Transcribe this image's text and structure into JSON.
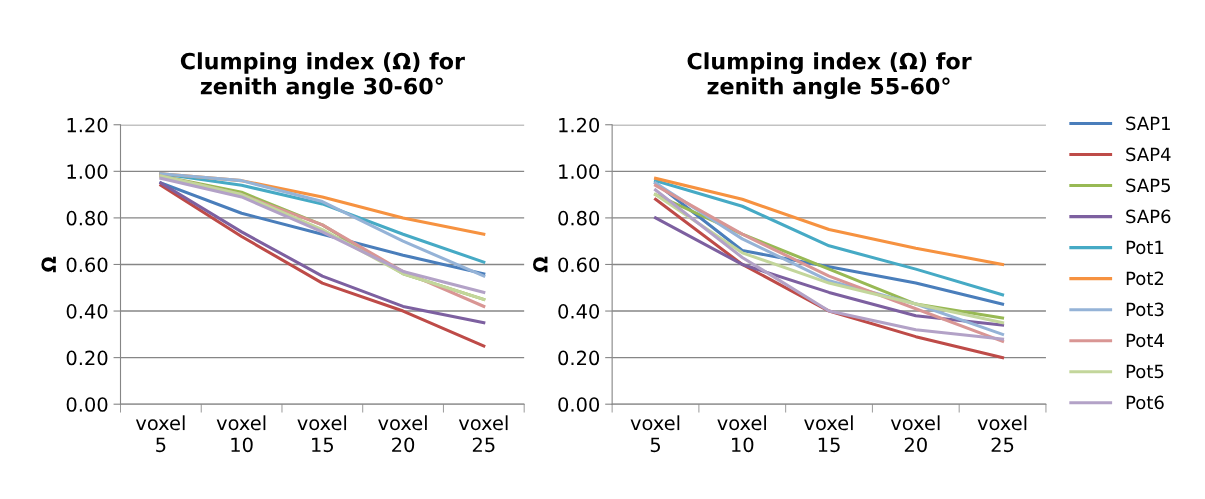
{
  "chart_data": [
    {
      "type": "line",
      "title": "Clumping index (Ω) for\nzenith angle 30-60°",
      "ylabel": "Ω",
      "categories": [
        "voxel 5",
        "voxel 10",
        "voxel 15",
        "voxel 20",
        "voxel 25"
      ],
      "ylim": [
        0,
        1.2
      ],
      "yticks": [
        {
          "value": 0,
          "label": "0.00"
        },
        {
          "value": 0.2,
          "label": "0.20"
        },
        {
          "value": 0.4,
          "label": "0.40"
        },
        {
          "value": 0.6,
          "label": "0.60"
        },
        {
          "value": 0.8,
          "label": "0.80"
        },
        {
          "value": 1.0,
          "label": "1.00"
        },
        {
          "value": 1.2,
          "label": "1.20"
        }
      ],
      "grid": "y",
      "series": [
        {
          "color": "#4a7ebb",
          "values": [
            0.95,
            0.82,
            0.73,
            0.64,
            0.56
          ]
        },
        {
          "color": "#be4b48",
          "values": [
            0.94,
            0.72,
            0.52,
            0.4,
            0.25
          ]
        },
        {
          "color": "#98b954",
          "values": [
            0.98,
            0.91,
            0.77,
            0.56,
            0.45
          ]
        },
        {
          "color": "#7d60a0",
          "values": [
            0.95,
            0.74,
            0.55,
            0.42,
            0.35
          ]
        },
        {
          "color": "#46aac5",
          "values": [
            0.99,
            0.94,
            0.86,
            0.73,
            0.61
          ]
        },
        {
          "color": "#f69240",
          "values": [
            0.99,
            0.96,
            0.89,
            0.8,
            0.73
          ]
        },
        {
          "color": "#95b3d7",
          "values": [
            0.99,
            0.96,
            0.87,
            0.7,
            0.55
          ]
        },
        {
          "color": "#d99694",
          "values": [
            0.98,
            0.9,
            0.77,
            0.57,
            0.42
          ]
        },
        {
          "color": "#c3d69b",
          "values": [
            0.98,
            0.9,
            0.75,
            0.56,
            0.45
          ]
        },
        {
          "color": "#b3a2c7",
          "values": [
            0.97,
            0.89,
            0.74,
            0.57,
            0.48
          ]
        }
      ]
    },
    {
      "type": "line",
      "title": "Clumping index (Ω) for\nzenith angle 55-60°",
      "ylabel": "Ω",
      "categories": [
        "voxel 5",
        "voxel 10",
        "voxel 15",
        "voxel 20",
        "voxel 25"
      ],
      "ylim": [
        0,
        1.2
      ],
      "yticks": [
        {
          "value": 0,
          "label": "0.00"
        },
        {
          "value": 0.2,
          "label": "0.20"
        },
        {
          "value": 0.4,
          "label": "0.40"
        },
        {
          "value": 0.6,
          "label": "0.60"
        },
        {
          "value": 0.8,
          "label": "0.80"
        },
        {
          "value": 1.0,
          "label": "1.00"
        },
        {
          "value": 1.2,
          "label": "1.20"
        }
      ],
      "grid": "y",
      "legend": "right",
      "series": [
        {
          "name": "SAP1",
          "color": "#4a7ebb",
          "values": [
            0.95,
            0.66,
            0.59,
            0.52,
            0.43
          ]
        },
        {
          "name": "SAP4",
          "color": "#be4b48",
          "values": [
            0.88,
            0.6,
            0.4,
            0.29,
            0.2
          ]
        },
        {
          "name": "SAP5",
          "color": "#98b954",
          "values": [
            0.9,
            0.73,
            0.58,
            0.43,
            0.37
          ]
        },
        {
          "name": "SAP6",
          "color": "#7d60a0",
          "values": [
            0.8,
            0.6,
            0.48,
            0.38,
            0.34
          ]
        },
        {
          "name": "Pot1",
          "color": "#46aac5",
          "values": [
            0.96,
            0.85,
            0.68,
            0.58,
            0.47
          ]
        },
        {
          "name": "Pot2",
          "color": "#f69240",
          "values": [
            0.97,
            0.88,
            0.75,
            0.67,
            0.6
          ]
        },
        {
          "name": "Pot3",
          "color": "#95b3d7",
          "values": [
            0.95,
            0.71,
            0.53,
            0.43,
            0.3
          ]
        },
        {
          "name": "Pot4",
          "color": "#d99694",
          "values": [
            0.94,
            0.73,
            0.55,
            0.41,
            0.27
          ]
        },
        {
          "name": "Pot5",
          "color": "#c3d69b",
          "values": [
            0.9,
            0.65,
            0.52,
            0.43,
            0.35
          ]
        },
        {
          "name": "Pot6",
          "color": "#b3a2c7",
          "values": [
            0.92,
            0.63,
            0.4,
            0.32,
            0.28
          ]
        }
      ]
    }
  ]
}
